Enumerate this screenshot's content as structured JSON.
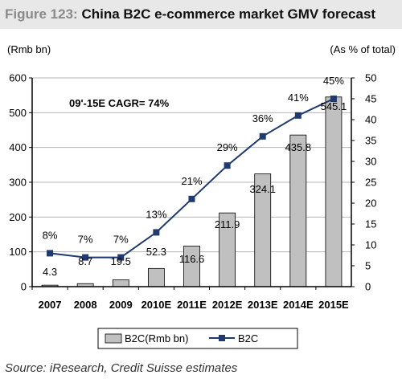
{
  "figure": {
    "number_label": "Figure 123:",
    "title": "China B2C e-commerce market GMV forecast",
    "source": "Source: iResearch, Credit Suisse estimates"
  },
  "chart_data": {
    "type": "bar+line",
    "categories": [
      "2007",
      "2008",
      "2009",
      "2010E",
      "2011E",
      "2012E",
      "2013E",
      "2014E",
      "2015E"
    ],
    "left_axis": {
      "label": "(Rmb bn)",
      "ylim": [
        0,
        600
      ],
      "ticks": [
        0,
        100,
        200,
        300,
        400,
        500,
        600
      ]
    },
    "right_axis": {
      "label": "(As % of total)",
      "ylim": [
        0,
        50
      ],
      "ticks": [
        0,
        5,
        10,
        15,
        20,
        25,
        30,
        35,
        40,
        45,
        50
      ]
    },
    "series": [
      {
        "name": "B2C(Rmb bn)",
        "kind": "bar",
        "axis": "left",
        "values": [
          4.3,
          8.7,
          19.5,
          52.3,
          116.6,
          211.9,
          324.1,
          435.8,
          545.1
        ],
        "labels": [
          "4.3",
          "8.7",
          "19.5",
          "52.3",
          "116.6",
          "211.9",
          "324.1",
          "435.8",
          "545.1"
        ],
        "color": "#c0c0c0"
      },
      {
        "name": "B2C",
        "kind": "line",
        "axis": "right",
        "values": [
          8,
          7,
          7,
          13,
          21,
          29,
          36,
          41,
          45
        ],
        "labels": [
          "8%",
          "7%",
          "7%",
          "13%",
          "21%",
          "29%",
          "36%",
          "41%",
          "45%"
        ],
        "color": "#1f3a6e"
      }
    ],
    "annotation": "09'-15E CAGR=  74%",
    "grid": true,
    "legend_position": "bottom"
  }
}
